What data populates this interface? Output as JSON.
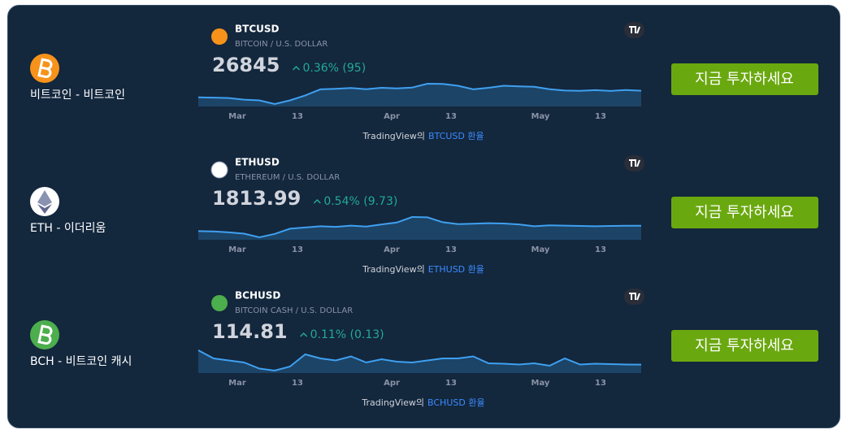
{
  "rows": [
    {
      "name": "비트코인 - 비트코인",
      "symbol": "BTCUSD",
      "description": "BITCOIN / U.S. DOLLAR",
      "price": "26845",
      "change": "0.36% (95)",
      "sparkline": [
        23500,
        23400,
        23200,
        22400,
        22000,
        20200,
        22000,
        24500,
        27500,
        27800,
        28200,
        27600,
        28300,
        28000,
        28400,
        30300,
        30200,
        29300,
        27500,
        28300,
        29300,
        29000,
        28800,
        27600,
        26900,
        26800,
        27100,
        26700,
        27200,
        26845
      ],
      "x_labels": [
        "Mar",
        "13",
        "Apr",
        "13",
        "May",
        "13"
      ],
      "attribution_prefix": "TradingView의",
      "attribution_link": "BTCUSD 환율",
      "button": "지금 투자하세요"
    },
    {
      "name": "ETH - 이더리움",
      "symbol": "ETHUSD",
      "description": "ETHEREUM / U.S. DOLLAR",
      "price": "1813.99",
      "change": "0.54% (9.73)",
      "sparkline": [
        1640,
        1630,
        1600,
        1560,
        1440,
        1550,
        1720,
        1760,
        1800,
        1780,
        1820,
        1790,
        1860,
        1920,
        2100,
        2090,
        1930,
        1870,
        1880,
        1900,
        1890,
        1860,
        1800,
        1830,
        1820,
        1810,
        1800,
        1810,
        1815,
        1813.99
      ],
      "x_labels": [
        "Mar",
        "13",
        "Apr",
        "13",
        "May",
        "13"
      ],
      "attribution_prefix": "TradingView의",
      "attribution_link": "ETHUSD 환율",
      "button": "지금 투자하세요"
    },
    {
      "name": "BCH - 비트코인 캐시",
      "symbol": "BCHUSD",
      "description": "BITCOIN CASH / U.S. DOLLAR",
      "price": "114.81",
      "change": "0.11% (0.13)",
      "sparkline": [
        150,
        130,
        125,
        120,
        105,
        100,
        110,
        140,
        130,
        125,
        135,
        120,
        128,
        122,
        120,
        125,
        130,
        130,
        135,
        118,
        117,
        115,
        118,
        112,
        130,
        115,
        117,
        116,
        115,
        114.81
      ],
      "x_labels": [
        "Mar",
        "13",
        "Apr",
        "13",
        "May",
        "13"
      ],
      "attribution_prefix": "TradingView의",
      "attribution_link": "BCHUSD 환율",
      "button": "지금 투자하세요"
    }
  ]
}
